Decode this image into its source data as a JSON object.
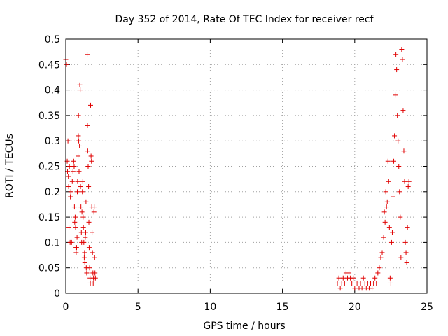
{
  "chart_data": {
    "type": "scatter",
    "title": "Day 352 of 2014, Rate Of TEC Index for receiver recf",
    "xlabel": "GPS time / hours",
    "ylabel": "ROTI / TECUs",
    "xlim": [
      0,
      25
    ],
    "ylim": [
      0,
      0.5
    ],
    "xticks": [
      "0",
      "5",
      "10",
      "15",
      "20",
      "25"
    ],
    "yticks": [
      "0",
      "0.05",
      "0.1",
      "0.15",
      "0.2",
      "0.25",
      "0.3",
      "0.35",
      "0.4",
      "0.45",
      "0.5"
    ],
    "grid": true,
    "marker": "+",
    "color": "#e00000",
    "series": [
      {
        "points": [
          [
            0.0,
            0.46
          ],
          [
            0.05,
            0.45
          ],
          [
            0.1,
            0.26
          ],
          [
            0.12,
            0.24
          ],
          [
            0.15,
            0.3
          ],
          [
            0.18,
            0.23
          ],
          [
            0.2,
            0.21
          ],
          [
            0.22,
            0.13
          ],
          [
            0.25,
            0.25
          ],
          [
            0.3,
            0.1
          ],
          [
            0.32,
            0.19
          ],
          [
            0.35,
            0.2
          ],
          [
            0.4,
            0.1
          ],
          [
            0.45,
            0.22
          ],
          [
            0.5,
            0.24
          ],
          [
            0.55,
            0.26
          ],
          [
            0.58,
            0.25
          ],
          [
            0.6,
            0.17
          ],
          [
            0.62,
            0.14
          ],
          [
            0.65,
            0.15
          ],
          [
            0.68,
            0.13
          ],
          [
            0.7,
            0.09
          ],
          [
            0.72,
            0.08
          ],
          [
            0.75,
            0.09
          ],
          [
            0.78,
            0.11
          ],
          [
            0.8,
            0.2
          ],
          [
            0.82,
            0.22
          ],
          [
            0.85,
            0.27
          ],
          [
            0.87,
            0.31
          ],
          [
            0.88,
            0.35
          ],
          [
            0.9,
            0.3
          ],
          [
            0.92,
            0.24
          ],
          [
            0.95,
            0.29
          ],
          [
            0.97,
            0.41
          ],
          [
            1.0,
            0.4
          ],
          [
            1.02,
            0.21
          ],
          [
            1.05,
            0.17
          ],
          [
            1.08,
            0.12
          ],
          [
            1.1,
            0.1
          ],
          [
            1.12,
            0.16
          ],
          [
            1.15,
            0.2
          ],
          [
            1.18,
            0.22
          ],
          [
            1.2,
            0.15
          ],
          [
            1.22,
            0.13
          ],
          [
            1.25,
            0.1
          ],
          [
            1.28,
            0.07
          ],
          [
            1.3,
            0.08
          ],
          [
            1.32,
            0.06
          ],
          [
            1.35,
            0.11
          ],
          [
            1.38,
            0.12
          ],
          [
            1.4,
            0.18
          ],
          [
            1.42,
            0.05
          ],
          [
            1.45,
            0.04
          ],
          [
            1.48,
            0.47
          ],
          [
            1.5,
            0.33
          ],
          [
            1.52,
            0.28
          ],
          [
            1.55,
            0.25
          ],
          [
            1.58,
            0.21
          ],
          [
            1.6,
            0.14
          ],
          [
            1.62,
            0.09
          ],
          [
            1.65,
            0.05
          ],
          [
            1.68,
            0.03
          ],
          [
            1.7,
            0.02
          ],
          [
            1.72,
            0.37
          ],
          [
            1.75,
            0.27
          ],
          [
            1.78,
            0.26
          ],
          [
            1.8,
            0.17
          ],
          [
            1.82,
            0.12
          ],
          [
            1.85,
            0.08
          ],
          [
            1.88,
            0.04
          ],
          [
            1.9,
            0.02
          ],
          [
            1.92,
            0.03
          ],
          [
            1.95,
            0.16
          ],
          [
            1.97,
            0.17
          ],
          [
            2.0,
            0.07
          ],
          [
            2.02,
            0.04
          ],
          [
            2.05,
            0.03
          ],
          [
            18.8,
            0.02
          ],
          [
            18.9,
            0.03
          ],
          [
            19.0,
            0.01
          ],
          [
            19.1,
            0.02
          ],
          [
            19.2,
            0.03
          ],
          [
            19.3,
            0.02
          ],
          [
            19.4,
            0.04
          ],
          [
            19.5,
            0.03
          ],
          [
            19.6,
            0.04
          ],
          [
            19.7,
            0.03
          ],
          [
            19.8,
            0.02
          ],
          [
            19.9,
            0.03
          ],
          [
            20.0,
            0.01
          ],
          [
            20.1,
            0.02
          ],
          [
            20.2,
            0.02
          ],
          [
            20.3,
            0.01
          ],
          [
            20.4,
            0.02
          ],
          [
            20.5,
            0.01
          ],
          [
            20.6,
            0.03
          ],
          [
            20.7,
            0.02
          ],
          [
            20.8,
            0.01
          ],
          [
            20.9,
            0.02
          ],
          [
            21.0,
            0.01
          ],
          [
            21.1,
            0.02
          ],
          [
            21.2,
            0.01
          ],
          [
            21.3,
            0.02
          ],
          [
            21.4,
            0.03
          ],
          [
            21.5,
            0.02
          ],
          [
            21.6,
            0.04
          ],
          [
            21.7,
            0.05
          ],
          [
            21.8,
            0.07
          ],
          [
            21.9,
            0.08
          ],
          [
            22.0,
            0.11
          ],
          [
            22.05,
            0.16
          ],
          [
            22.1,
            0.14
          ],
          [
            22.15,
            0.2
          ],
          [
            22.2,
            0.17
          ],
          [
            22.25,
            0.18
          ],
          [
            22.3,
            0.26
          ],
          [
            22.35,
            0.22
          ],
          [
            22.4,
            0.13
          ],
          [
            22.45,
            0.03
          ],
          [
            22.5,
            0.02
          ],
          [
            22.55,
            0.1
          ],
          [
            22.6,
            0.12
          ],
          [
            22.65,
            0.19
          ],
          [
            22.7,
            0.26
          ],
          [
            22.75,
            0.31
          ],
          [
            22.8,
            0.39
          ],
          [
            22.85,
            0.47
          ],
          [
            22.9,
            0.44
          ],
          [
            22.95,
            0.35
          ],
          [
            23.0,
            0.3
          ],
          [
            23.05,
            0.25
          ],
          [
            23.1,
            0.2
          ],
          [
            23.15,
            0.15
          ],
          [
            23.2,
            0.07
          ],
          [
            23.25,
            0.48
          ],
          [
            23.3,
            0.46
          ],
          [
            23.35,
            0.36
          ],
          [
            23.4,
            0.28
          ],
          [
            23.45,
            0.22
          ],
          [
            23.5,
            0.1
          ],
          [
            23.55,
            0.08
          ],
          [
            23.6,
            0.06
          ],
          [
            23.65,
            0.13
          ],
          [
            23.7,
            0.21
          ],
          [
            23.75,
            0.22
          ]
        ]
      }
    ]
  }
}
